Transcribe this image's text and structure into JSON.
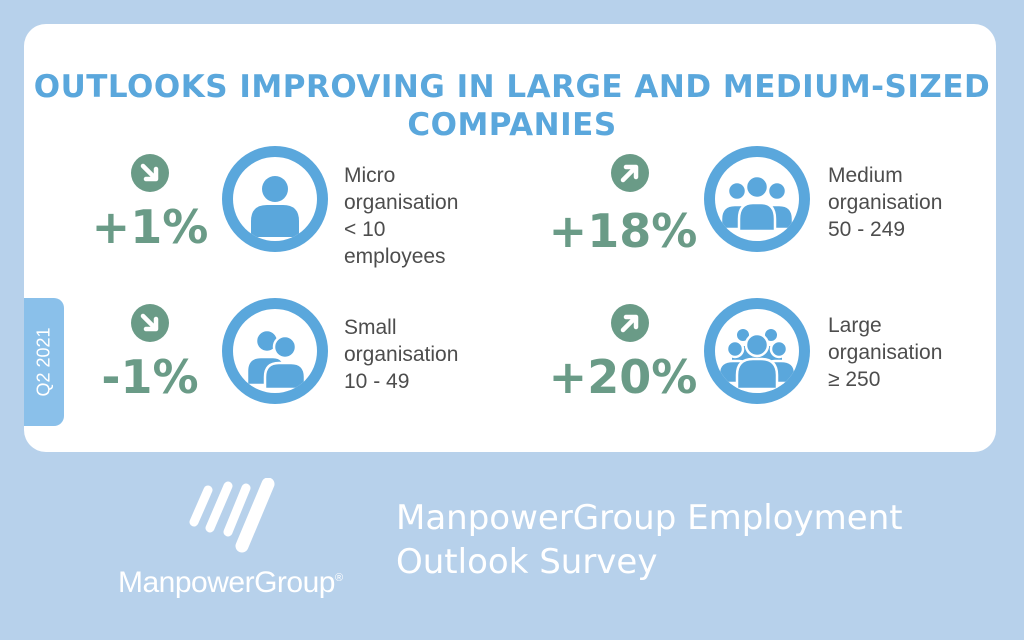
{
  "title": {
    "line1": "OUTLOOKS IMPROVING IN LARGE AND MEDIUM-SIZED",
    "line2": "COMPANIES"
  },
  "quarter_tag": "Q2 2021",
  "colors": {
    "background": "#b7d1eb",
    "accent_blue": "#5aa7dc",
    "accent_green": "#6a9b87",
    "text_gray": "#4d4d4d"
  },
  "metrics": [
    {
      "value": "+1%",
      "trend": "down",
      "icon": "single-person-icon",
      "line1": "Micro",
      "line2": "organisation",
      "line3": "< 10 employees"
    },
    {
      "value": "+18%",
      "trend": "up",
      "icon": "group-of-three-icon",
      "line1": "Medium",
      "line2": "organisation",
      "line3": "50 - 249"
    },
    {
      "value": "-1%",
      "trend": "down",
      "icon": "pair-of-people-icon",
      "line1": "Small",
      "line2": "organisation",
      "line3": "10 - 49"
    },
    {
      "value": "+20%",
      "trend": "up",
      "icon": "large-group-icon",
      "line1": "Large",
      "line2": "organisation",
      "line3": "≥ 250"
    }
  ],
  "footer": {
    "brand": "ManpowerGroup",
    "registered": "®",
    "survey_line1": "ManpowerGroup Employment",
    "survey_line2": "Outlook Survey"
  }
}
